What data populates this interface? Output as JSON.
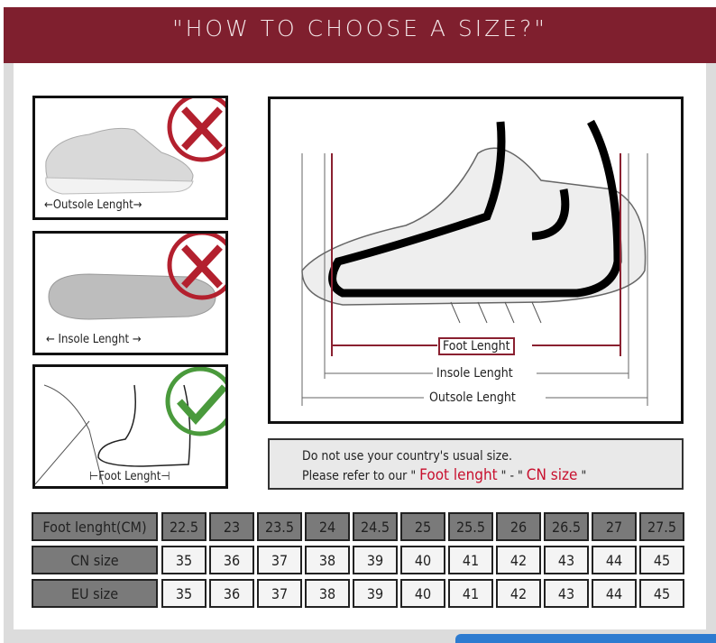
{
  "title": "\"HOW TO CHOOSE A SIZE?\"",
  "panels": {
    "outsole_label": "Outsole Lenght",
    "insole_label": "Insole Lenght",
    "foot_label": "Foot Lenght",
    "wrong_icon": "red-x-circle",
    "right_icon": "green-check-circle"
  },
  "diagram": {
    "foot": "Foot Lenght",
    "insole": "Insole Lenght",
    "outsole": "Outsole Lenght"
  },
  "note": {
    "line1": "Do not use your country's usual size.",
    "line2_prefix": "Please refer to our \"",
    "foot": "Foot lenght",
    "sep": "\" - \"",
    "cn": "CN size",
    "suffix": "\""
  },
  "table": {
    "headers": [
      "Foot lenght(CM)",
      "CN size",
      "EU size"
    ],
    "foot": [
      "22.5",
      "23",
      "23.5",
      "24",
      "24.5",
      "25",
      "25.5",
      "26",
      "26.5",
      "27",
      "27.5"
    ],
    "cn": [
      "35",
      "36",
      "37",
      "38",
      "39",
      "40",
      "41",
      "42",
      "43",
      "44",
      "45"
    ],
    "eu": [
      "35",
      "36",
      "37",
      "38",
      "39",
      "40",
      "41",
      "42",
      "43",
      "44",
      "45"
    ]
  },
  "colors": {
    "banner": "#7f1f2e",
    "accent_red": "#c8102e",
    "check_green": "#4a9a3c"
  }
}
